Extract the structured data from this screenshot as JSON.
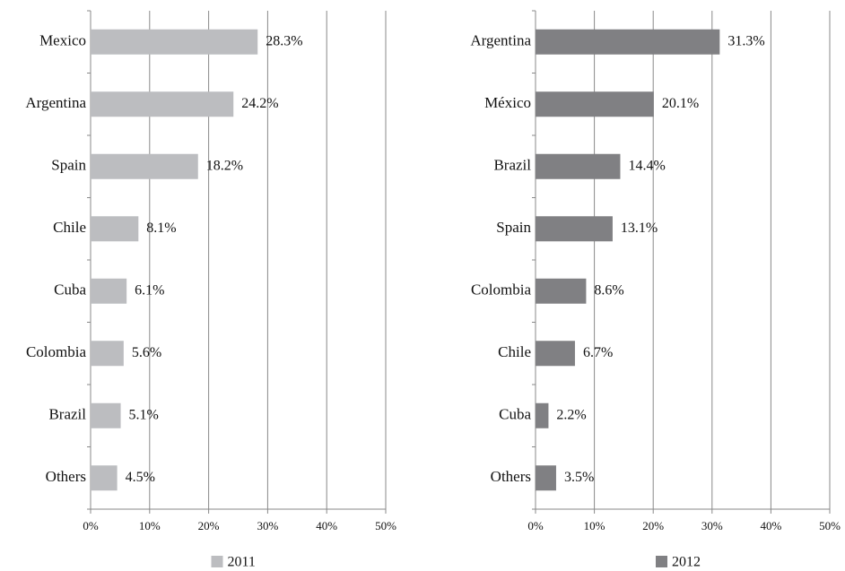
{
  "chart_data": [
    {
      "type": "bar",
      "orientation": "horizontal",
      "categories": [
        "Mexico",
        "Argentina",
        "Spain",
        "Chile",
        "Cuba",
        "Colombia",
        "Brazil",
        "Others"
      ],
      "series": [
        {
          "name": "2011",
          "color": "#bcbdc0",
          "values": [
            28.3,
            24.2,
            18.2,
            8.1,
            6.1,
            5.6,
            5.1,
            4.5
          ],
          "value_labels": [
            "28.3%",
            "24.2%",
            "18.2%",
            "8.1%",
            "6.1%",
            "5.6%",
            "5.1%",
            "4.5%"
          ]
        }
      ],
      "xlim": [
        0,
        50
      ],
      "xticks": [
        {
          "value": 0,
          "label": "0%"
        },
        {
          "value": 10,
          "label": "10%"
        },
        {
          "value": 20,
          "label": "20%"
        },
        {
          "value": 30,
          "label": "30%"
        },
        {
          "value": 40,
          "label": "40%"
        },
        {
          "value": 50,
          "label": "50%"
        }
      ],
      "grid": true,
      "legend": "bottom"
    },
    {
      "type": "bar",
      "orientation": "horizontal",
      "categories": [
        "Argentina",
        "México",
        "Brazil",
        "Spain",
        "Colombia",
        "Chile",
        "Cuba",
        "Others"
      ],
      "series": [
        {
          "name": "2012",
          "color": "#808083",
          "values": [
            31.3,
            20.1,
            14.4,
            13.1,
            8.6,
            6.7,
            2.2,
            3.5
          ],
          "value_labels": [
            "31.3%",
            "20.1%",
            "14.4%",
            "13.1%",
            "8.6%",
            "6.7%",
            "2.2%",
            "3.5%"
          ]
        }
      ],
      "xlim": [
        0,
        50
      ],
      "xticks": [
        {
          "value": 0,
          "label": "0%"
        },
        {
          "value": 10,
          "label": "10%"
        },
        {
          "value": 20,
          "label": "20%"
        },
        {
          "value": 30,
          "label": "30%"
        },
        {
          "value": 40,
          "label": "40%"
        },
        {
          "value": 50,
          "label": "50%"
        }
      ],
      "grid": true,
      "legend": "bottom"
    }
  ]
}
